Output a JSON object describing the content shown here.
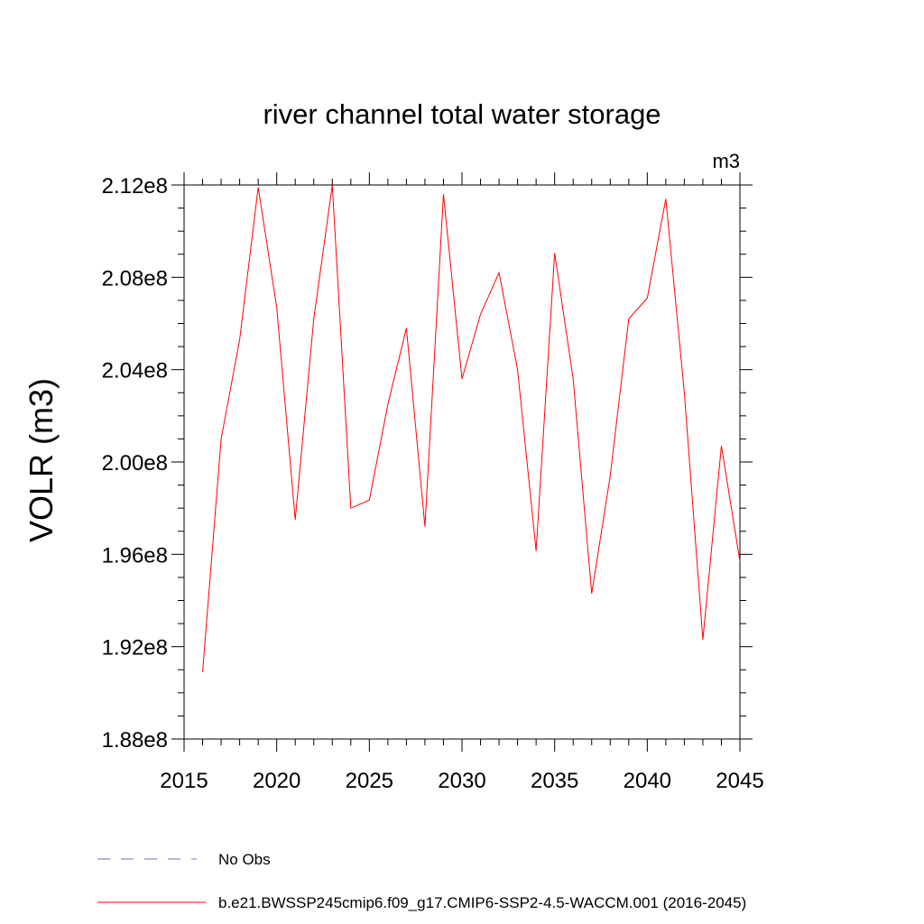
{
  "chart_data": {
    "type": "line",
    "title": "river channel total water storage",
    "units_label": "m3",
    "xlabel": "",
    "ylabel": "VOLR  (m3)",
    "xlim": [
      2015,
      2045
    ],
    "ylim": [
      188000000,
      212000000
    ],
    "x_ticks": [
      2015,
      2020,
      2025,
      2030,
      2035,
      2040,
      2045
    ],
    "x_tick_labels": [
      "2015",
      "2020",
      "2025",
      "2030",
      "2035",
      "2040",
      "2045"
    ],
    "y_ticks": [
      188000000,
      192000000,
      196000000,
      200000000,
      204000000,
      208000000,
      212000000
    ],
    "y_tick_labels": [
      "1.88e8",
      "1.92e8",
      "1.96e8",
      "2.00e8",
      "2.04e8",
      "2.08e8",
      "2.12e8"
    ],
    "grid": false,
    "legend_position": "bottom",
    "series": [
      {
        "name": "b.e21.BWSSP245cmip6.f09_g17.CMIP6-SSP2-4.5-WACCM.001 (2016-2045)",
        "color": "#ff0000",
        "style": "solid",
        "x": [
          2016,
          2017,
          2018,
          2019,
          2020,
          2021,
          2022,
          2023,
          2024,
          2025,
          2026,
          2027,
          2028,
          2029,
          2030,
          2031,
          2032,
          2033,
          2034,
          2035,
          2036,
          2037,
          2038,
          2039,
          2040,
          2041,
          2042,
          2043,
          2044,
          2045
        ],
        "values": [
          190900000,
          201000000,
          205300000,
          211900000,
          206700000,
          197500000,
          206200000,
          212000000,
          198000000,
          198350000,
          202500000,
          205800000,
          197200000,
          211600000,
          203600000,
          206400000,
          208200000,
          204000000,
          196150000,
          209050000,
          203600000,
          194300000,
          199400000,
          206200000,
          207100000,
          211400000,
          203000000,
          192300000,
          200700000,
          195700000
        ]
      }
    ],
    "legend": [
      {
        "label": "No Obs",
        "color": "#7b68b0",
        "style": "dashed"
      },
      {
        "label": "b.e21.BWSSP245cmip6.f09_g17.CMIP6-SSP2-4.5-WACCM.001 (2016-2045)",
        "color": "#ff0000",
        "style": "solid"
      }
    ]
  }
}
